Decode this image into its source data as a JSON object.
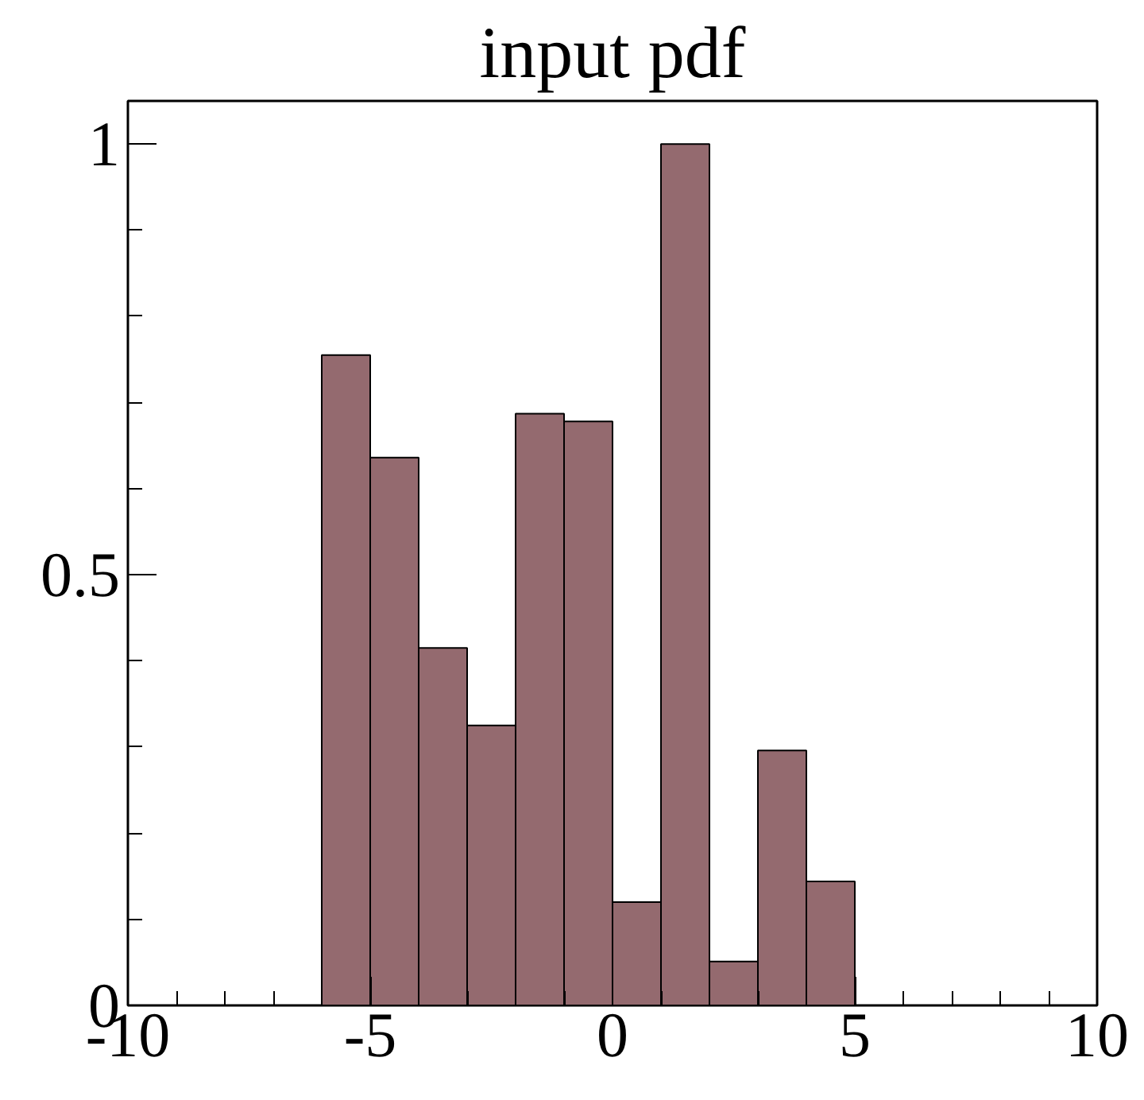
{
  "chart_data": {
    "type": "histogram",
    "title": "input pdf",
    "bins": [
      -6,
      -5,
      -4,
      -3,
      -2,
      -1,
      0,
      1,
      2,
      3,
      4,
      5
    ],
    "values": [
      0.755,
      0.636,
      0.415,
      0.325,
      0.687,
      0.678,
      0.12,
      1.0,
      0.051,
      0.296,
      0.144
    ],
    "color": "#946a6f",
    "xlim": [
      -10,
      10
    ],
    "ylim": [
      0,
      1.05
    ],
    "xticks": [
      -10,
      -5,
      0,
      5,
      10
    ],
    "yticks": [
      0,
      0.5,
      1
    ],
    "grid": false
  }
}
